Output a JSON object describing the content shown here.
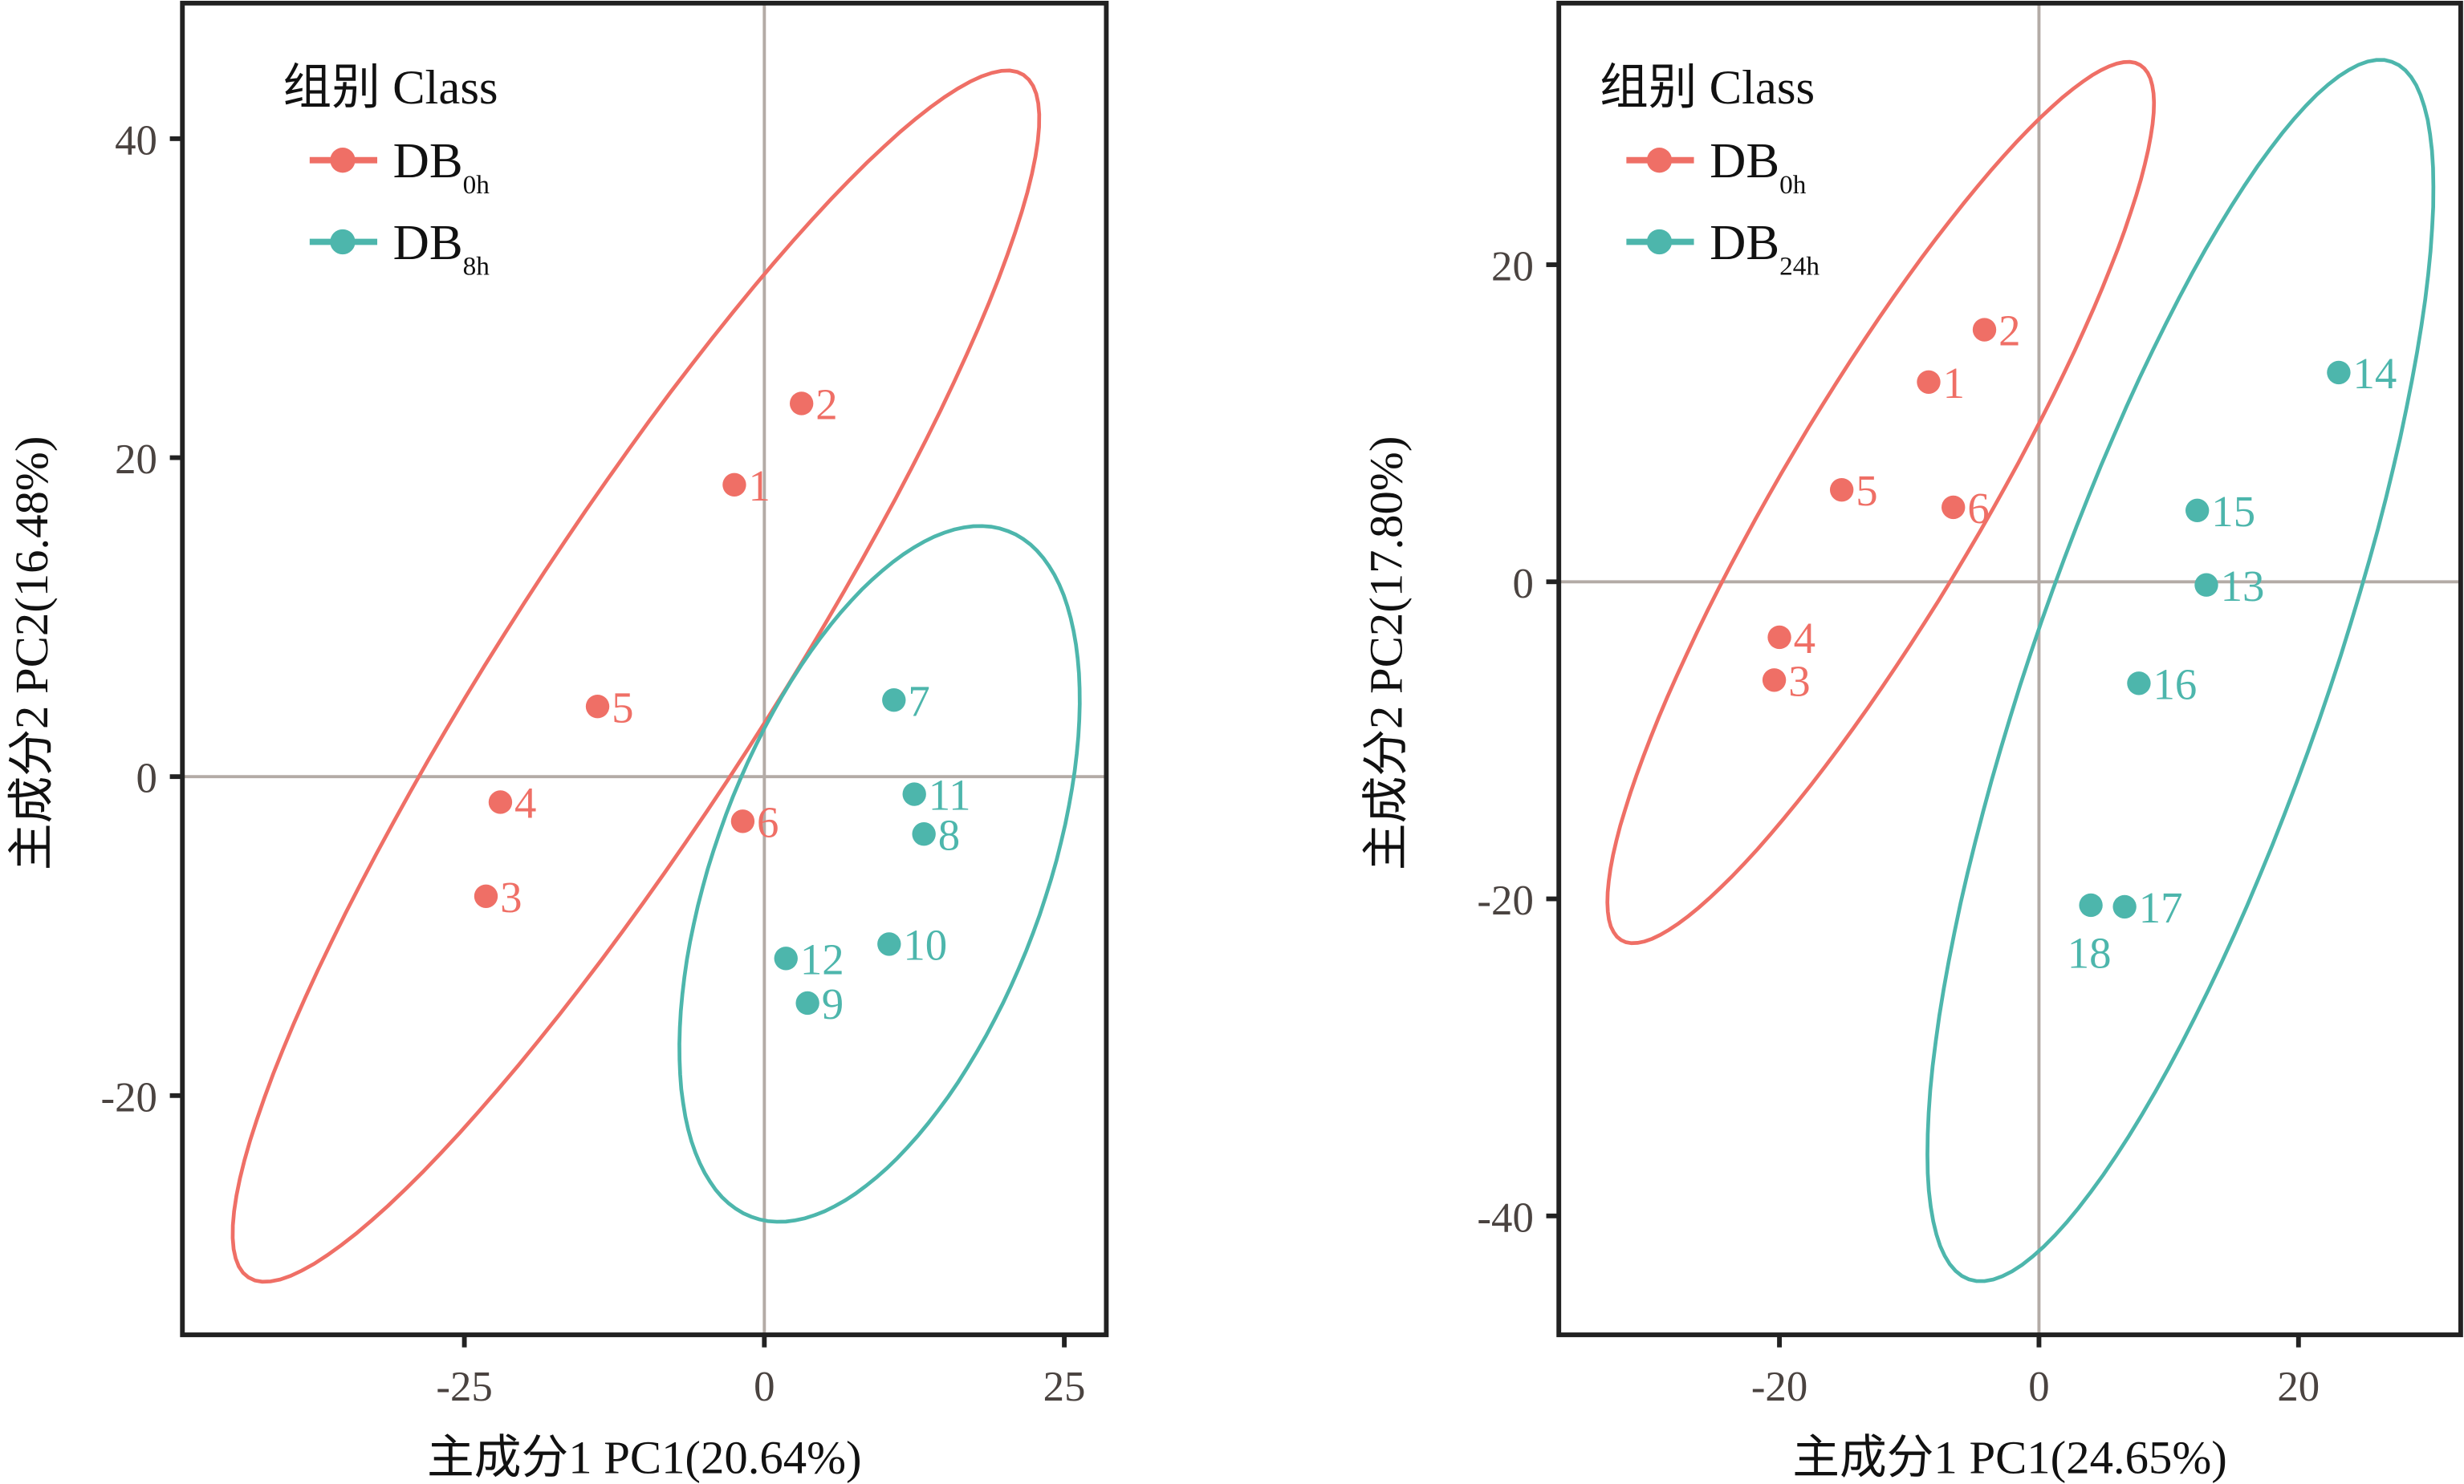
{
  "colors": {
    "DB0h": "#ef6f66",
    "DB8h": "#4db6ac",
    "DB24h": "#4db6ac",
    "zero_line": "#b3aba6",
    "frame": "#222222"
  },
  "chart_data": [
    {
      "type": "scatter",
      "title": "",
      "xlabel": "主成分1 PC1(20.64%)",
      "ylabel": "主成分2 PC2(16.48%)",
      "xlim": [
        -48.5,
        28.5
      ],
      "ylim": [
        -35,
        48.5
      ],
      "xticks": [
        -25,
        0,
        25
      ],
      "xtick_labels": [
        "-25",
        "0",
        "25"
      ],
      "yticks": [
        -20,
        0,
        20,
        40
      ],
      "ytick_labels": [
        "-20",
        "0",
        "20",
        "40"
      ],
      "grid": false,
      "zero_lines": true,
      "legend": {
        "title": "组别 Class",
        "placement": "top-left",
        "entries": [
          {
            "key": "DB0h",
            "base": "DB",
            "sub": "0h"
          },
          {
            "key": "DB8h",
            "base": "DB",
            "sub": "8h"
          }
        ]
      },
      "series": [
        {
          "name": "DB0h",
          "points": [
            {
              "label": "1",
              "x": -2.5,
              "y": 18.3
            },
            {
              "label": "2",
              "x": 3.1,
              "y": 23.4
            },
            {
              "label": "3",
              "x": -23.2,
              "y": -7.5
            },
            {
              "label": "4",
              "x": -22.0,
              "y": -1.6
            },
            {
              "label": "5",
              "x": -13.9,
              "y": 4.4
            },
            {
              "label": "6",
              "x": -1.8,
              "y": -2.8
            }
          ],
          "ellipse": {
            "center": [
              -10.7,
              6.3
            ],
            "major": [
              32.3,
              37.7
            ],
            "minor": [
              9.3,
              -4.6
            ]
          }
        },
        {
          "name": "DB8h",
          "points": [
            {
              "label": "7",
              "x": 10.8,
              "y": 4.8
            },
            {
              "label": "8",
              "x": 13.3,
              "y": -3.6
            },
            {
              "label": "9",
              "x": 3.6,
              "y": -14.2
            },
            {
              "label": "10",
              "x": 10.4,
              "y": -10.5
            },
            {
              "label": "11",
              "x": 12.5,
              "y": -1.1
            },
            {
              "label": "12",
              "x": 1.8,
              "y": -11.4
            }
          ],
          "ellipse": {
            "center": [
              9.6,
              -6.1
            ],
            "major": [
              10.7,
              21.5
            ],
            "minor": [
              12.8,
              -3.7
            ]
          }
        }
      ]
    },
    {
      "type": "scatter",
      "title": "",
      "xlabel": "主成分1 PC1(24.65%)",
      "ylabel": "主成分2 PC2(17.80%)",
      "xlim": [
        -37,
        32.5
      ],
      "ylim": [
        -47.5,
        36.5
      ],
      "xticks": [
        -20,
        0,
        20
      ],
      "xtick_labels": [
        "-20",
        "0",
        "20"
      ],
      "yticks": [
        -40,
        -20,
        0,
        20
      ],
      "ytick_labels": [
        "-40",
        "-20",
        "0",
        "20"
      ],
      "grid": false,
      "zero_lines": true,
      "legend": {
        "title": "组别 Class",
        "placement": "top-left",
        "entries": [
          {
            "key": "DB0h",
            "base": "DB",
            "sub": "0h"
          },
          {
            "key": "DB24h",
            "base": "DB",
            "sub": "24h"
          }
        ]
      },
      "series": [
        {
          "name": "DB0h",
          "points": [
            {
              "label": "1",
              "x": -8.5,
              "y": 12.6
            },
            {
              "label": "2",
              "x": -4.2,
              "y": 15.9
            },
            {
              "label": "3",
              "x": -20.4,
              "y": -6.2
            },
            {
              "label": "4",
              "x": -20.0,
              "y": -3.5
            },
            {
              "label": "5",
              "x": -15.2,
              "y": 5.8
            },
            {
              "label": "6",
              "x": -6.6,
              "y": 4.7
            }
          ],
          "ellipse": {
            "center": [
              -12.2,
              5.0
            ],
            "major": [
              20.0,
              27.6
            ],
            "minor": [
              6.6,
              -3.3
            ]
          }
        },
        {
          "name": "DB24h",
          "points": [
            {
              "label": "13",
              "x": 12.9,
              "y": -0.2
            },
            {
              "label": "14",
              "x": 23.1,
              "y": 13.2
            },
            {
              "label": "15",
              "x": 12.2,
              "y": 4.5
            },
            {
              "label": "16",
              "x": 7.7,
              "y": -6.4
            },
            {
              "label": "17",
              "x": 6.6,
              "y": -20.5
            },
            {
              "label": "18",
              "x": 4.0,
              "y": -20.4,
              "label_below": true
            }
          ],
          "ellipse": {
            "center": [
              10.9,
              -5.6
            ],
            "major": [
              16.3,
              38.4
            ],
            "minor": [
              10.7,
              -3.1
            ]
          }
        }
      ]
    }
  ]
}
